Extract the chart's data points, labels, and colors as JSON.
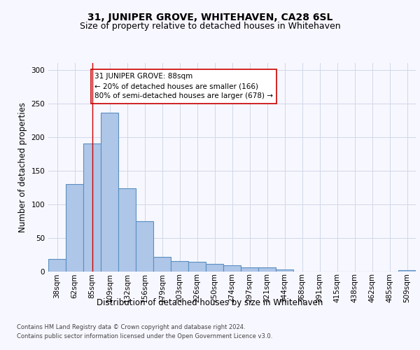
{
  "title": "31, JUNIPER GROVE, WHITEHAVEN, CA28 6SL",
  "subtitle": "Size of property relative to detached houses in Whitehaven",
  "xlabel": "Distribution of detached houses by size in Whitehaven",
  "ylabel": "Number of detached properties",
  "categories": [
    "38sqm",
    "62sqm",
    "85sqm",
    "109sqm",
    "132sqm",
    "156sqm",
    "179sqm",
    "203sqm",
    "226sqm",
    "250sqm",
    "274sqm",
    "297sqm",
    "321sqm",
    "344sqm",
    "368sqm",
    "391sqm",
    "415sqm",
    "438sqm",
    "462sqm",
    "485sqm",
    "509sqm"
  ],
  "values": [
    18,
    130,
    190,
    236,
    124,
    75,
    21,
    15,
    14,
    11,
    9,
    6,
    6,
    3,
    0,
    0,
    0,
    0,
    0,
    0,
    2
  ],
  "bar_color": "#aec6e8",
  "bar_edge_color": "#5a8fc0",
  "bar_edge_width": 0.8,
  "vline_x_index": 2,
  "vline_color": "#cc0000",
  "annotation_line1": "31 JUNIPER GROVE: 88sqm",
  "annotation_line2": "← 20% of detached houses are smaller (166)",
  "annotation_line3": "80% of semi-detached houses are larger (678) →",
  "annotation_box_color": "#ffffff",
  "annotation_box_edge_color": "#cc0000",
  "ylim": [
    0,
    310
  ],
  "yticks": [
    0,
    50,
    100,
    150,
    200,
    250,
    300
  ],
  "title_fontsize": 10,
  "subtitle_fontsize": 9,
  "xlabel_fontsize": 8.5,
  "ylabel_fontsize": 8.5,
  "tick_fontsize": 7.5,
  "annotation_fontsize": 7.5,
  "footer_line1": "Contains HM Land Registry data © Crown copyright and database right 2024.",
  "footer_line2": "Contains public sector information licensed under the Open Government Licence v3.0.",
  "footer_fontsize": 6,
  "background_color": "#f7f7ff",
  "grid_color": "#d0d8e8"
}
